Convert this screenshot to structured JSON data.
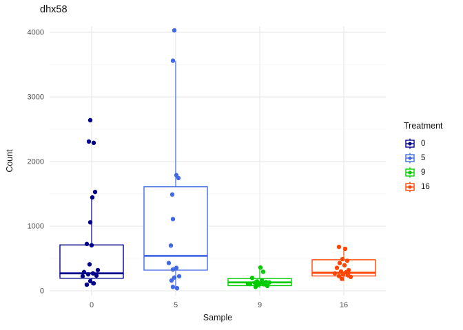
{
  "title": "dhx58",
  "x_axis_title": "Sample",
  "y_axis_title": "Count",
  "legend": {
    "title": "Treatment",
    "items": [
      {
        "label": "0",
        "color": "#00008B"
      },
      {
        "label": "5",
        "color": "#4169E1"
      },
      {
        "label": "9",
        "color": "#00CC00"
      },
      {
        "label": "16",
        "color": "#FF4500"
      }
    ]
  },
  "chart_data": {
    "type": "boxplot-jitter",
    "title": "dhx58",
    "xlabel": "Sample",
    "ylabel": "Count",
    "ylim": [
      0,
      4100
    ],
    "grid": "on",
    "legend_position": "right",
    "y_major_ticks": [
      0,
      1000,
      2000,
      3000,
      4000
    ],
    "y_minor_ticks": [
      500,
      1500,
      2500,
      3500
    ],
    "categories": [
      "0",
      "5",
      "9",
      "16"
    ],
    "groups": [
      {
        "label": "0",
        "color": "#00008B",
        "box": {
          "low": 95,
          "q1": 195,
          "median": 270,
          "q3": 710,
          "high": 1450
        },
        "points": [
          {
            "v": 2640,
            "dx": -2
          },
          {
            "v": 2310,
            "dx": -4
          },
          {
            "v": 2290,
            "dx": 3
          },
          {
            "v": 1530,
            "dx": 5
          },
          {
            "v": 1445,
            "dx": 1
          },
          {
            "v": 1060,
            "dx": -2
          },
          {
            "v": 725,
            "dx": -7
          },
          {
            "v": 705,
            "dx": 0
          },
          {
            "v": 410,
            "dx": -3
          },
          {
            "v": 320,
            "dx": 9
          },
          {
            "v": 290,
            "dx": -11
          },
          {
            "v": 270,
            "dx": 2
          },
          {
            "v": 255,
            "dx": -5
          },
          {
            "v": 235,
            "dx": 7
          },
          {
            "v": 225,
            "dx": -13
          },
          {
            "v": 150,
            "dx": -2
          },
          {
            "v": 115,
            "dx": 3
          },
          {
            "v": 95,
            "dx": -7
          }
        ]
      },
      {
        "label": "5",
        "color": "#4169E1",
        "box": {
          "low": 40,
          "q1": 320,
          "median": 540,
          "q3": 1610,
          "high": 3560
        },
        "points": [
          {
            "v": 4030,
            "dx": -2
          },
          {
            "v": 3560,
            "dx": -4
          },
          {
            "v": 1790,
            "dx": 1
          },
          {
            "v": 1745,
            "dx": 4
          },
          {
            "v": 1490,
            "dx": -5
          },
          {
            "v": 1110,
            "dx": -4
          },
          {
            "v": 700,
            "dx": -7
          },
          {
            "v": 430,
            "dx": -10
          },
          {
            "v": 355,
            "dx": 1
          },
          {
            "v": 330,
            "dx": -4
          },
          {
            "v": 225,
            "dx": 5
          },
          {
            "v": 205,
            "dx": -2
          },
          {
            "v": 160,
            "dx": -6
          },
          {
            "v": 60,
            "dx": -4
          },
          {
            "v": 40,
            "dx": 2
          }
        ]
      },
      {
        "label": "9",
        "color": "#00CC00",
        "box": {
          "low": 45,
          "q1": 80,
          "median": 130,
          "q3": 190,
          "high": 360
        },
        "points": [
          {
            "v": 360,
            "dx": 1
          },
          {
            "v": 295,
            "dx": 5
          },
          {
            "v": 200,
            "dx": -11
          },
          {
            "v": 165,
            "dx": 3
          },
          {
            "v": 145,
            "dx": -4
          },
          {
            "v": 135,
            "dx": 9
          },
          {
            "v": 130,
            "dx": 14
          },
          {
            "v": 125,
            "dx": -7
          },
          {
            "v": 115,
            "dx": 0
          },
          {
            "v": 110,
            "dx": -17
          },
          {
            "v": 105,
            "dx": -14
          },
          {
            "v": 100,
            "dx": 6
          },
          {
            "v": 90,
            "dx": -3
          },
          {
            "v": 75,
            "dx": 11
          },
          {
            "v": 60,
            "dx": -6
          }
        ]
      },
      {
        "label": "16",
        "color": "#FF4500",
        "box": {
          "low": 150,
          "q1": 230,
          "median": 280,
          "q3": 480,
          "high": 680
        },
        "points": [
          {
            "v": 680,
            "dx": -7
          },
          {
            "v": 650,
            "dx": 2
          },
          {
            "v": 490,
            "dx": -2
          },
          {
            "v": 465,
            "dx": 5
          },
          {
            "v": 430,
            "dx": -6
          },
          {
            "v": 395,
            "dx": 1
          },
          {
            "v": 355,
            "dx": -10
          },
          {
            "v": 320,
            "dx": 7
          },
          {
            "v": 300,
            "dx": -4
          },
          {
            "v": 285,
            "dx": 3
          },
          {
            "v": 270,
            "dx": -13
          },
          {
            "v": 255,
            "dx": -1
          },
          {
            "v": 240,
            "dx": 6
          },
          {
            "v": 230,
            "dx": -7
          },
          {
            "v": 215,
            "dx": 10
          },
          {
            "v": 185,
            "dx": -3
          }
        ]
      }
    ]
  }
}
